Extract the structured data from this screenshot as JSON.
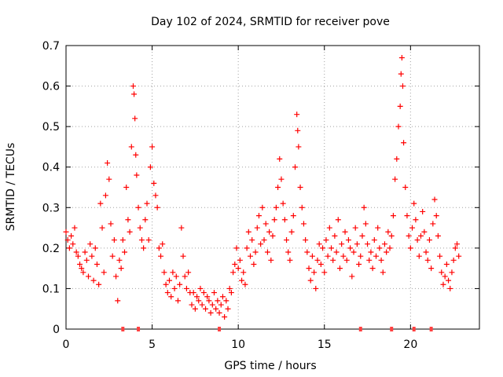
{
  "chart_data": {
    "type": "scatter",
    "title": "Day 102 of 2024, SRMTID for receiver pove",
    "xlabel": "GPS time / hours",
    "ylabel": "SRMTID / TECUs",
    "xlim": [
      0,
      24
    ],
    "ylim": [
      0,
      0.7
    ],
    "xticks": [
      0,
      5,
      10,
      15,
      20
    ],
    "xtick_labels": [
      "0",
      "5",
      "10",
      "15",
      "20"
    ],
    "yticks": [
      0,
      0.1,
      0.2,
      0.3,
      0.4,
      0.5,
      0.6,
      0.7
    ],
    "ytick_labels": [
      "0",
      "0.1",
      "0.2",
      "0.3",
      "0.4",
      "0.5",
      "0.6",
      "0.7"
    ],
    "grid": true,
    "marker": "+",
    "color": "#ff0000",
    "series": [
      {
        "name": "SRMTID",
        "points": [
          [
            0.0,
            0.24
          ],
          [
            0.1,
            0.22
          ],
          [
            0.2,
            0.2
          ],
          [
            0.3,
            0.23
          ],
          [
            0.4,
            0.21
          ],
          [
            0.5,
            0.25
          ],
          [
            0.6,
            0.19
          ],
          [
            0.7,
            0.18
          ],
          [
            0.8,
            0.16
          ],
          [
            0.9,
            0.15
          ],
          [
            1.0,
            0.14
          ],
          [
            1.1,
            0.19
          ],
          [
            1.2,
            0.17
          ],
          [
            1.3,
            0.13
          ],
          [
            1.4,
            0.21
          ],
          [
            1.5,
            0.18
          ],
          [
            1.6,
            0.12
          ],
          [
            1.7,
            0.2
          ],
          [
            1.8,
            0.16
          ],
          [
            1.9,
            0.11
          ],
          [
            2.0,
            0.31
          ],
          [
            2.1,
            0.25
          ],
          [
            2.2,
            0.14
          ],
          [
            2.3,
            0.33
          ],
          [
            2.4,
            0.41
          ],
          [
            2.5,
            0.37
          ],
          [
            2.6,
            0.26
          ],
          [
            2.7,
            0.18
          ],
          [
            2.8,
            0.22
          ],
          [
            2.9,
            0.13
          ],
          [
            3.0,
            0.07
          ],
          [
            3.1,
            0.17
          ],
          [
            3.2,
            0.15
          ],
          [
            3.3,
            0.22
          ],
          [
            3.4,
            0.19
          ],
          [
            3.5,
            0.35
          ],
          [
            3.6,
            0.27
          ],
          [
            3.7,
            0.24
          ],
          [
            3.8,
            0.45
          ],
          [
            3.9,
            0.6
          ],
          [
            3.95,
            0.58
          ],
          [
            4.0,
            0.52
          ],
          [
            4.05,
            0.43
          ],
          [
            4.1,
            0.38
          ],
          [
            4.2,
            0.3
          ],
          [
            4.3,
            0.25
          ],
          [
            4.4,
            0.22
          ],
          [
            4.5,
            0.2
          ],
          [
            4.6,
            0.27
          ],
          [
            4.7,
            0.31
          ],
          [
            4.8,
            0.22
          ],
          [
            4.9,
            0.4
          ],
          [
            5.0,
            0.45
          ],
          [
            5.1,
            0.36
          ],
          [
            5.2,
            0.33
          ],
          [
            5.3,
            0.3
          ],
          [
            5.4,
            0.2
          ],
          [
            5.5,
            0.18
          ],
          [
            5.6,
            0.21
          ],
          [
            5.7,
            0.14
          ],
          [
            5.8,
            0.11
          ],
          [
            5.9,
            0.09
          ],
          [
            6.0,
            0.12
          ],
          [
            6.1,
            0.08
          ],
          [
            6.2,
            0.14
          ],
          [
            6.3,
            0.1
          ],
          [
            6.4,
            0.13
          ],
          [
            6.5,
            0.07
          ],
          [
            6.6,
            0.11
          ],
          [
            6.7,
            0.25
          ],
          [
            6.8,
            0.18
          ],
          [
            6.9,
            0.13
          ],
          [
            7.0,
            0.1
          ],
          [
            7.1,
            0.14
          ],
          [
            7.2,
            0.09
          ],
          [
            7.3,
            0.06
          ],
          [
            7.4,
            0.09
          ],
          [
            7.5,
            0.05
          ],
          [
            7.6,
            0.08
          ],
          [
            7.7,
            0.07
          ],
          [
            7.8,
            0.1
          ],
          [
            7.9,
            0.06
          ],
          [
            8.0,
            0.09
          ],
          [
            8.1,
            0.05
          ],
          [
            8.2,
            0.08
          ],
          [
            8.3,
            0.07
          ],
          [
            8.4,
            0.04
          ],
          [
            8.5,
            0.06
          ],
          [
            8.6,
            0.09
          ],
          [
            8.7,
            0.05
          ],
          [
            8.8,
            0.07
          ],
          [
            8.9,
            0.04
          ],
          [
            9.0,
            0.06
          ],
          [
            9.1,
            0.08
          ],
          [
            9.2,
            0.03
          ],
          [
            9.3,
            0.07
          ],
          [
            9.4,
            0.05
          ],
          [
            9.5,
            0.1
          ],
          [
            9.6,
            0.09
          ],
          [
            9.7,
            0.14
          ],
          [
            9.8,
            0.16
          ],
          [
            9.9,
            0.2
          ],
          [
            10.0,
            0.15
          ],
          [
            10.1,
            0.17
          ],
          [
            10.2,
            0.12
          ],
          [
            10.3,
            0.14
          ],
          [
            10.4,
            0.11
          ],
          [
            10.5,
            0.2
          ],
          [
            10.6,
            0.24
          ],
          [
            10.7,
            0.18
          ],
          [
            10.8,
            0.22
          ],
          [
            10.9,
            0.16
          ],
          [
            11.0,
            0.19
          ],
          [
            11.1,
            0.25
          ],
          [
            11.2,
            0.28
          ],
          [
            11.3,
            0.21
          ],
          [
            11.4,
            0.3
          ],
          [
            11.5,
            0.22
          ],
          [
            11.6,
            0.26
          ],
          [
            11.7,
            0.19
          ],
          [
            11.8,
            0.24
          ],
          [
            11.9,
            0.17
          ],
          [
            12.0,
            0.23
          ],
          [
            12.1,
            0.27
          ],
          [
            12.2,
            0.3
          ],
          [
            12.3,
            0.35
          ],
          [
            12.4,
            0.42
          ],
          [
            12.5,
            0.37
          ],
          [
            12.6,
            0.31
          ],
          [
            12.7,
            0.27
          ],
          [
            12.8,
            0.22
          ],
          [
            12.9,
            0.19
          ],
          [
            13.0,
            0.17
          ],
          [
            13.1,
            0.24
          ],
          [
            13.2,
            0.28
          ],
          [
            13.3,
            0.4
          ],
          [
            13.4,
            0.53
          ],
          [
            13.45,
            0.49
          ],
          [
            13.5,
            0.45
          ],
          [
            13.6,
            0.35
          ],
          [
            13.7,
            0.3
          ],
          [
            13.8,
            0.26
          ],
          [
            13.9,
            0.22
          ],
          [
            14.0,
            0.19
          ],
          [
            14.1,
            0.15
          ],
          [
            14.2,
            0.12
          ],
          [
            14.3,
            0.18
          ],
          [
            14.4,
            0.14
          ],
          [
            14.5,
            0.1
          ],
          [
            14.6,
            0.17
          ],
          [
            14.7,
            0.21
          ],
          [
            14.8,
            0.16
          ],
          [
            14.9,
            0.2
          ],
          [
            15.0,
            0.14
          ],
          [
            15.1,
            0.22
          ],
          [
            15.2,
            0.18
          ],
          [
            15.3,
            0.25
          ],
          [
            15.4,
            0.2
          ],
          [
            15.5,
            0.17
          ],
          [
            15.6,
            0.23
          ],
          [
            15.7,
            0.19
          ],
          [
            15.8,
            0.27
          ],
          [
            15.9,
            0.15
          ],
          [
            16.0,
            0.21
          ],
          [
            16.1,
            0.18
          ],
          [
            16.2,
            0.24
          ],
          [
            16.3,
            0.17
          ],
          [
            16.4,
            0.22
          ],
          [
            16.5,
            0.2
          ],
          [
            16.6,
            0.13
          ],
          [
            16.7,
            0.19
          ],
          [
            16.8,
            0.25
          ],
          [
            16.9,
            0.21
          ],
          [
            17.0,
            0.16
          ],
          [
            17.1,
            0.18
          ],
          [
            17.2,
            0.23
          ],
          [
            17.3,
            0.3
          ],
          [
            17.4,
            0.26
          ],
          [
            17.5,
            0.21
          ],
          [
            17.6,
            0.17
          ],
          [
            17.7,
            0.19
          ],
          [
            17.8,
            0.15
          ],
          [
            17.9,
            0.22
          ],
          [
            18.0,
            0.18
          ],
          [
            18.1,
            0.25
          ],
          [
            18.2,
            0.2
          ],
          [
            18.3,
            0.17
          ],
          [
            18.4,
            0.14
          ],
          [
            18.5,
            0.21
          ],
          [
            18.6,
            0.19
          ],
          [
            18.7,
            0.24
          ],
          [
            18.8,
            0.2
          ],
          [
            18.9,
            0.23
          ],
          [
            19.0,
            0.28
          ],
          [
            19.1,
            0.37
          ],
          [
            19.2,
            0.42
          ],
          [
            19.3,
            0.5
          ],
          [
            19.4,
            0.55
          ],
          [
            19.45,
            0.63
          ],
          [
            19.5,
            0.67
          ],
          [
            19.55,
            0.6
          ],
          [
            19.6,
            0.46
          ],
          [
            19.7,
            0.35
          ],
          [
            19.8,
            0.28
          ],
          [
            19.9,
            0.23
          ],
          [
            20.0,
            0.2
          ],
          [
            20.1,
            0.25
          ],
          [
            20.2,
            0.31
          ],
          [
            20.3,
            0.27
          ],
          [
            20.4,
            0.22
          ],
          [
            20.5,
            0.18
          ],
          [
            20.6,
            0.23
          ],
          [
            20.7,
            0.29
          ],
          [
            20.8,
            0.24
          ],
          [
            20.9,
            0.19
          ],
          [
            21.0,
            0.17
          ],
          [
            21.1,
            0.22
          ],
          [
            21.2,
            0.15
          ],
          [
            21.3,
            0.26
          ],
          [
            21.4,
            0.32
          ],
          [
            21.5,
            0.28
          ],
          [
            21.6,
            0.23
          ],
          [
            21.7,
            0.18
          ],
          [
            21.8,
            0.14
          ],
          [
            21.9,
            0.11
          ],
          [
            22.0,
            0.13
          ],
          [
            22.1,
            0.16
          ],
          [
            22.2,
            0.12
          ],
          [
            22.3,
            0.1
          ],
          [
            22.4,
            0.14
          ],
          [
            22.5,
            0.17
          ],
          [
            22.6,
            0.2
          ],
          [
            22.7,
            0.21
          ],
          [
            22.8,
            0.18
          ]
        ]
      }
    ],
    "baseline_markers": {
      "name": "zero-value markers",
      "x": [
        3.3,
        4.2,
        8.9,
        17.1,
        18.9,
        20.2,
        21.2
      ]
    }
  }
}
